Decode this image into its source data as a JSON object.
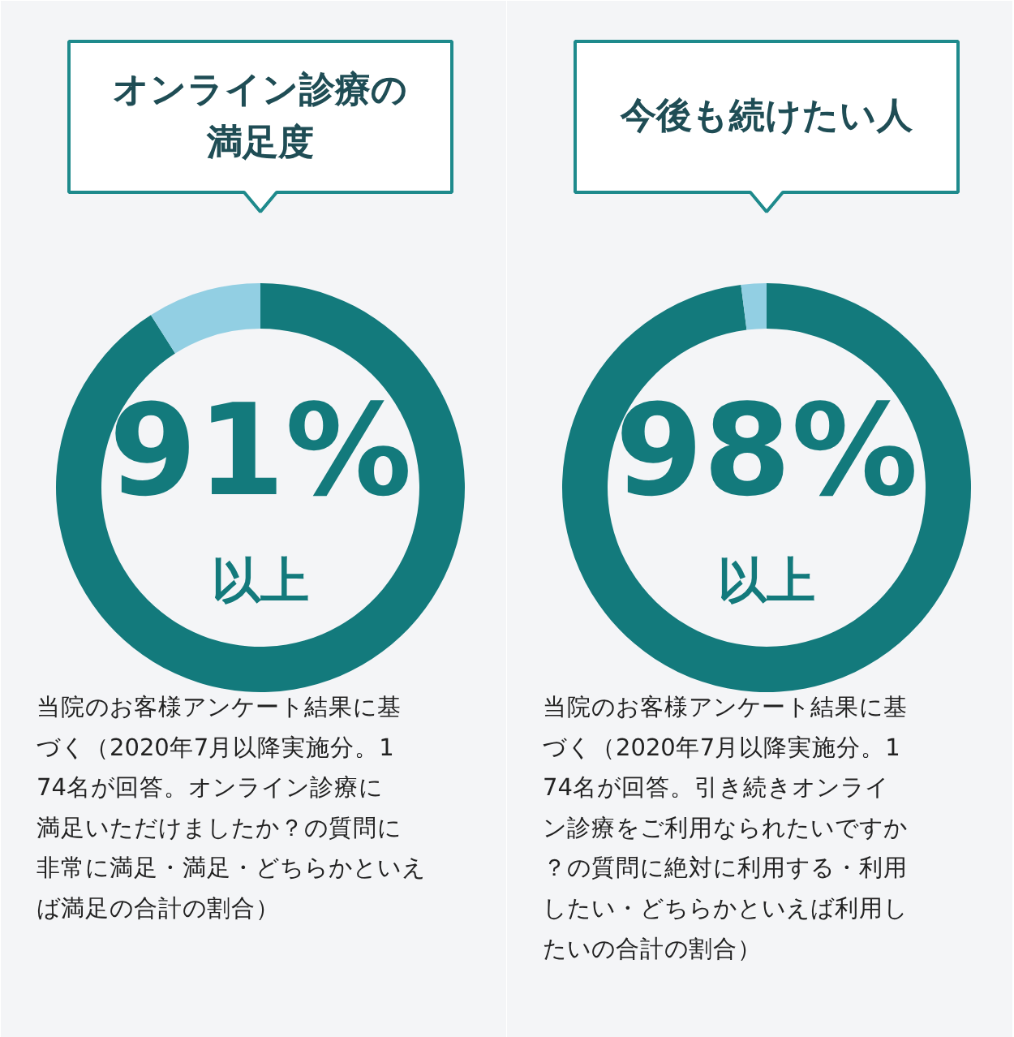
{
  "chart_data": [
    {
      "type": "donut",
      "title": "オンライン診療の満足度",
      "categories": [
        null,
        null
      ],
      "values": [
        91,
        9
      ],
      "colors": [
        "#137a7c",
        "#92cfe3"
      ],
      "value_labels": [
        "91%",
        null
      ],
      "annotations": [
        "以上",
        "当院のお客様アンケート結果に基づく（2020年7月以降実施分。174名が回答。オンライン診療に満足いただけましたか？の質問に非常に満足・満足・どちらかといえば満足の合計の割合）"
      ]
    },
    {
      "type": "donut",
      "title": "今後も続けたい人",
      "categories": [
        null,
        null
      ],
      "values": [
        98,
        2
      ],
      "colors": [
        "#137a7c",
        "#92cfe3"
      ],
      "value_labels": [
        "98%",
        null
      ],
      "annotations": [
        "以上",
        "当院のお客様アンケート結果に基づく（2020年7月以降実施分。174名が回答。引き続きオンライン診療をご利用なられたいですか？の質問に絶対に利用する・利用したい・どちらかといえば利用したいの合計の割合）"
      ]
    }
  ]
}
